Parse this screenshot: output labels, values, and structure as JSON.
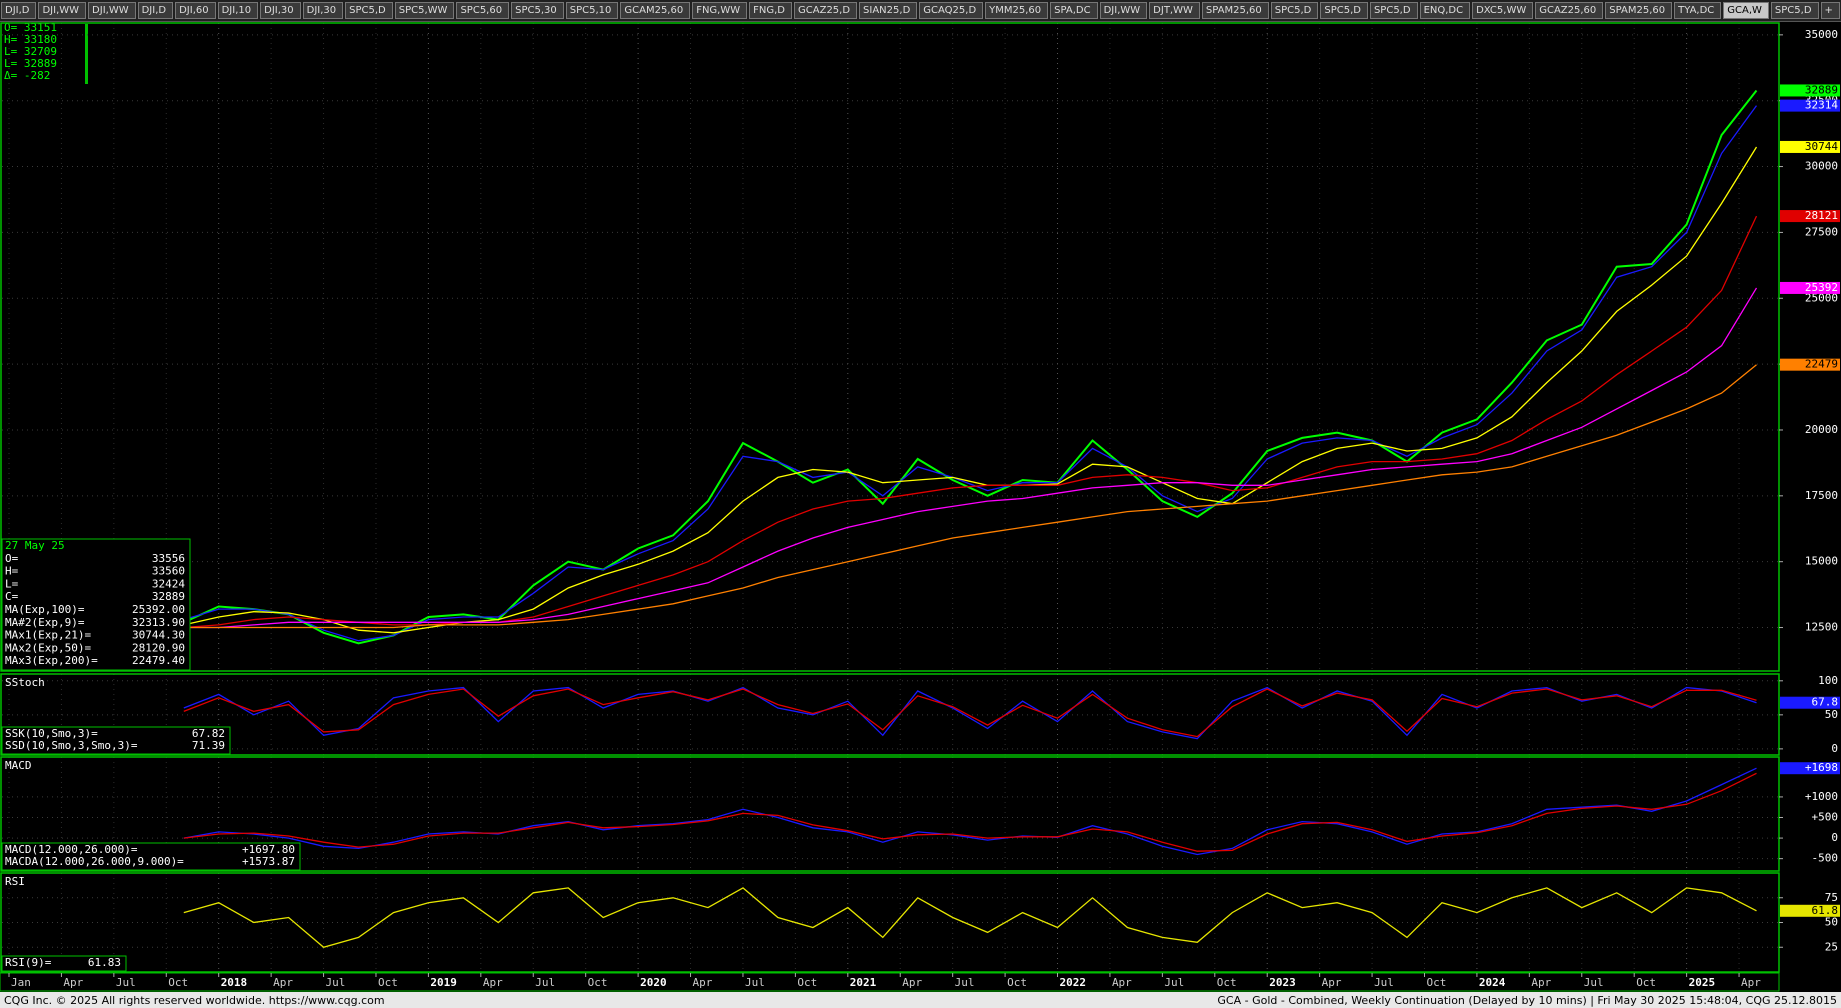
{
  "tabs": [
    {
      "label": "DJI,D"
    },
    {
      "label": "DJI,WW"
    },
    {
      "label": "DJI,WW"
    },
    {
      "label": "DJI,D"
    },
    {
      "label": "DJI,60"
    },
    {
      "label": "DJI,10"
    },
    {
      "label": "DJI,30"
    },
    {
      "label": "DJI,30"
    },
    {
      "label": "SPC5,D"
    },
    {
      "label": "SPC5,WW"
    },
    {
      "label": "SPC5,60"
    },
    {
      "label": "SPC5,30"
    },
    {
      "label": "SPC5,10"
    },
    {
      "label": "GCAM25,60"
    },
    {
      "label": "FNG,WW"
    },
    {
      "label": "FNG,D"
    },
    {
      "label": "GCAZ25,D"
    },
    {
      "label": "SIAN25,D"
    },
    {
      "label": "GCAQ25,D"
    },
    {
      "label": "YMM25,60"
    },
    {
      "label": "SPA,DC"
    },
    {
      "label": "DJI,WW"
    },
    {
      "label": "DJT,WW"
    },
    {
      "label": "SPAM25,60"
    },
    {
      "label": "SPC5,D"
    },
    {
      "label": "SPC5,D"
    },
    {
      "label": "SPC5,D"
    },
    {
      "label": "ENQ,DC"
    },
    {
      "label": "DXC5,WW"
    },
    {
      "label": "GCAZ25,60"
    },
    {
      "label": "SPAM25,60"
    },
    {
      "label": "TYA,DC"
    },
    {
      "label": "GCA,W",
      "active": true
    },
    {
      "label": "SPC5,D"
    },
    {
      "label": "+"
    }
  ],
  "price_readout": [
    "O=   33151",
    "H=   33180",
    "L=   32709",
    "L=   32889",
    "Δ=    -282"
  ],
  "footer": {
    "left": "CQG Inc. © 2025 All rights reserved worldwide. https://www.cqg.com",
    "right": "GCA - Gold - Combined, Weekly Continuation (Delayed by 10 mins) | Fri May 30 2025 15:48:04, CQG 25.12.8015"
  },
  "chart_data": {
    "type": "line",
    "x": [
      "2017-11",
      "2018-01",
      "2018-03",
      "2018-05",
      "2018-07",
      "2018-09",
      "2018-11",
      "2019-01",
      "2019-03",
      "2019-05",
      "2019-07",
      "2019-09",
      "2019-11",
      "2020-01",
      "2020-03",
      "2020-05",
      "2020-07",
      "2020-09",
      "2020-11",
      "2021-01",
      "2021-03",
      "2021-05",
      "2021-07",
      "2021-09",
      "2021-11",
      "2022-01",
      "2022-03",
      "2022-05",
      "2022-07",
      "2022-09",
      "2022-11",
      "2023-01",
      "2023-03",
      "2023-05",
      "2023-07",
      "2023-09",
      "2023-11",
      "2024-01",
      "2024-03",
      "2024-05",
      "2024-07",
      "2024-09",
      "2024-11",
      "2025-01",
      "2025-03",
      "2025-05"
    ],
    "xlim": [
      "2017-01",
      "2025-06"
    ],
    "xticks": [
      {
        "value": "2017-01",
        "label": "Jan"
      },
      {
        "value": "2017-04",
        "label": "Apr"
      },
      {
        "value": "2017-07",
        "label": "Jul"
      },
      {
        "value": "2017-10",
        "label": "Oct"
      },
      {
        "value": "2018-01",
        "label": "2018"
      },
      {
        "value": "2018-04",
        "label": "Apr"
      },
      {
        "value": "2018-07",
        "label": "Jul"
      },
      {
        "value": "2018-10",
        "label": "Oct"
      },
      {
        "value": "2019-01",
        "label": "2019"
      },
      {
        "value": "2019-04",
        "label": "Apr"
      },
      {
        "value": "2019-07",
        "label": "Jul"
      },
      {
        "value": "2019-10",
        "label": "Oct"
      },
      {
        "value": "2020-01",
        "label": "2020"
      },
      {
        "value": "2020-04",
        "label": "Apr"
      },
      {
        "value": "2020-07",
        "label": "Jul"
      },
      {
        "value": "2020-10",
        "label": "Oct"
      },
      {
        "value": "2021-01",
        "label": "2021"
      },
      {
        "value": "2021-04",
        "label": "Apr"
      },
      {
        "value": "2021-07",
        "label": "Jul"
      },
      {
        "value": "2021-10",
        "label": "Oct"
      },
      {
        "value": "2022-01",
        "label": "2022"
      },
      {
        "value": "2022-04",
        "label": "Apr"
      },
      {
        "value": "2022-07",
        "label": "Jul"
      },
      {
        "value": "2022-10",
        "label": "Oct"
      },
      {
        "value": "2023-01",
        "label": "2023"
      },
      {
        "value": "2023-04",
        "label": "Apr"
      },
      {
        "value": "2023-07",
        "label": "Jul"
      },
      {
        "value": "2023-10",
        "label": "Oct"
      },
      {
        "value": "2024-01",
        "label": "2024"
      },
      {
        "value": "2024-04",
        "label": "Apr"
      },
      {
        "value": "2024-07",
        "label": "Jul"
      },
      {
        "value": "2024-10",
        "label": "Oct"
      },
      {
        "value": "2025-01",
        "label": "2025"
      },
      {
        "value": "2025-04",
        "label": "Apr"
      }
    ],
    "panels": [
      {
        "date": "27 May 25",
        "readout": [
          [
            "O=",
            "33556"
          ],
          [
            "H=",
            "33560"
          ],
          [
            "L=",
            "32424"
          ],
          [
            "C=",
            "32889"
          ],
          [
            "MA(Exp,100)=",
            "25392.00"
          ],
          [
            "MA#2(Exp,9)=",
            "32313.90"
          ],
          [
            "MAx1(Exp,21)=",
            "30744.30"
          ],
          [
            "MAx2(Exp,50)=",
            "28120.90"
          ],
          [
            "MAx3(Exp,200)=",
            "22479.40"
          ]
        ],
        "ylim": [
          10850,
          35450
        ],
        "yticks": [
          12500,
          15000,
          17500,
          20000,
          22500,
          25000,
          27500,
          30000,
          32500,
          35000
        ],
        "series": [
          {
            "color": "#00ff00",
            "flag": "32889",
            "values": [
              12700,
              13300,
              13200,
              13000,
              12300,
              11900,
              12200,
              12900,
              13000,
              12800,
              14100,
              15000,
              14700,
              15500,
              16000,
              17300,
              19500,
              18800,
              18000,
              18500,
              17200,
              18900,
              18100,
              17500,
              18100,
              18000,
              19600,
              18500,
              17300,
              16700,
              17600,
              19200,
              19700,
              19900,
              19600,
              18800,
              19900,
              20400,
              21800,
              23400,
              24000,
              26200,
              26300,
              27800,
              31200,
              32889
            ]
          },
          {
            "color": "#1a1aff",
            "flag": "32314",
            "values": [
              12800,
              13200,
              13200,
              13000,
              12400,
              12000,
              12200,
              12800,
              12900,
              12900,
              13800,
              14800,
              14700,
              15300,
              15800,
              17000,
              19000,
              18800,
              18200,
              18400,
              17500,
              18600,
              18200,
              17700,
              18000,
              18000,
              19300,
              18600,
              17500,
              16900,
              17400,
              18900,
              19500,
              19700,
              19600,
              19000,
              19700,
              20200,
              21400,
              23000,
              23800,
              25800,
              26200,
              27500,
              30500,
              32313.9
            ]
          },
          {
            "color": "#ffff00",
            "flag": "30744",
            "values": [
              12600,
              12900,
              13100,
              13050,
              12800,
              12400,
              12300,
              12500,
              12700,
              12800,
              13200,
              14000,
              14500,
              14900,
              15400,
              16100,
              17300,
              18200,
              18500,
              18400,
              18000,
              18100,
              18200,
              17900,
              17900,
              17950,
              18700,
              18600,
              18000,
              17400,
              17200,
              18000,
              18800,
              19300,
              19500,
              19200,
              19300,
              19700,
              20500,
              21800,
              23000,
              24500,
              25500,
              26600,
              28600,
              30744.3
            ]
          },
          {
            "color": "#e00000",
            "flag": "28121",
            "values": [
              12500,
              12600,
              12800,
              12900,
              12800,
              12700,
              12600,
              12600,
              12700,
              12700,
              12900,
              13300,
              13700,
              14100,
              14500,
              15000,
              15800,
              16500,
              17000,
              17300,
              17400,
              17600,
              17800,
              17900,
              17900,
              17900,
              18200,
              18300,
              18200,
              18000,
              17700,
              17800,
              18200,
              18600,
              18800,
              18800,
              18900,
              19100,
              19600,
              20400,
              21100,
              22100,
              23000,
              23900,
              25300,
              28120.9
            ]
          },
          {
            "color": "#ff00ff",
            "flag": "25392",
            "values": [
              12500,
              12500,
              12600,
              12700,
              12700,
              12700,
              12700,
              12700,
              12700,
              12700,
              12800,
              13000,
              13300,
              13600,
              13900,
              14200,
              14800,
              15400,
              15900,
              16300,
              16600,
              16900,
              17100,
              17300,
              17400,
              17600,
              17800,
              17900,
              18000,
              18000,
              17900,
              17900,
              18100,
              18300,
              18500,
              18600,
              18700,
              18800,
              19100,
              19600,
              20100,
              20800,
              21500,
              22200,
              23200,
              25392
            ]
          },
          {
            "color": "#ff8000",
            "flag": "22479",
            "values": [
              12500,
              12500,
              12500,
              12500,
              12500,
              12500,
              12500,
              12600,
              12600,
              12600,
              12700,
              12800,
              13000,
              13200,
              13400,
              13700,
              14000,
              14400,
              14700,
              15000,
              15300,
              15600,
              15900,
              16100,
              16300,
              16500,
              16700,
              16900,
              17000,
              17100,
              17200,
              17300,
              17500,
              17700,
              17900,
              18100,
              18300,
              18400,
              18600,
              19000,
              19400,
              19800,
              20300,
              20800,
              21400,
              22479.4
            ]
          }
        ]
      },
      {
        "title": "SStoch",
        "readout": [
          [
            "SSK(10,Smo,3)=",
            "67.82"
          ],
          [
            "SSD(10,Smo,3,Smo,3)=",
            "71.39"
          ]
        ],
        "ylim": [
          -9,
          110
        ],
        "yticks": [
          0,
          50,
          100
        ],
        "series": [
          {
            "color": "#1a1aff",
            "flag": "67.8",
            "values": [
              60,
              80,
              50,
              70,
              20,
              30,
              75,
              85,
              90,
              40,
              85,
              90,
              60,
              80,
              85,
              70,
              90,
              60,
              50,
              70,
              20,
              85,
              60,
              30,
              70,
              40,
              85,
              40,
              25,
              15,
              70,
              90,
              60,
              85,
              70,
              20,
              80,
              60,
              85,
              90,
              70,
              80,
              60,
              90,
              85,
              67.82
            ]
          },
          {
            "color": "#e00000",
            "values": [
              55,
              75,
              55,
              65,
              25,
              28,
              65,
              80,
              88,
              48,
              78,
              88,
              65,
              75,
              84,
              72,
              88,
              65,
              52,
              66,
              28,
              78,
              62,
              35,
              64,
              45,
              80,
              45,
              28,
              18,
              62,
              88,
              63,
              82,
              72,
              26,
              74,
              62,
              82,
              88,
              72,
              78,
              62,
              86,
              86,
              71.39
            ]
          }
        ]
      },
      {
        "title": "MACD",
        "readout": [
          [
            "MACD(12.000,26.000)=",
            "+1697.80"
          ],
          [
            "MACDA(12.000,26.000,9.000)=",
            "+1573.87"
          ]
        ],
        "ylim": [
          -800,
          1970
        ],
        "yticks": [
          -500,
          0,
          {
            "value": 500,
            "label": "+500"
          },
          {
            "value": 1000,
            "label": "+1000"
          }
        ],
        "series": [
          {
            "color": "#1a1aff",
            "flag": "+1698",
            "values": [
              0,
              150,
              100,
              0,
              -200,
              -250,
              -100,
              100,
              150,
              100,
              300,
              400,
              200,
              300,
              350,
              450,
              700,
              500,
              250,
              150,
              -100,
              150,
              80,
              -50,
              50,
              20,
              300,
              100,
              -200,
              -400,
              -250,
              200,
              400,
              350,
              150,
              -150,
              100,
              150,
              350,
              700,
              750,
              800,
              650,
              900,
              1300,
              1697.8
            ]
          },
          {
            "color": "#e00000",
            "values": [
              0,
              100,
              120,
              50,
              -100,
              -220,
              -150,
              50,
              120,
              120,
              250,
              380,
              250,
              280,
              330,
              420,
              600,
              550,
              320,
              180,
              -20,
              80,
              100,
              0,
              30,
              30,
              220,
              150,
              -100,
              -320,
              -300,
              100,
              350,
              380,
              200,
              -80,
              50,
              130,
              300,
              600,
              720,
              780,
              700,
              820,
              1150,
              1573.87
            ]
          }
        ]
      },
      {
        "title": "RSI",
        "readout": [
          [
            "RSI(9)=",
            "61.83"
          ]
        ],
        "ylim": [
          0,
          100
        ],
        "yticks": [
          25,
          50,
          75
        ],
        "series": [
          {
            "color": "#e6e600",
            "flag": "61.8",
            "values": [
              60,
              70,
              50,
              55,
              25,
              35,
              60,
              70,
              75,
              50,
              80,
              85,
              55,
              70,
              75,
              65,
              85,
              55,
              45,
              65,
              35,
              75,
              55,
              40,
              60,
              45,
              75,
              45,
              35,
              30,
              60,
              80,
              65,
              70,
              60,
              35,
              70,
              60,
              75,
              85,
              65,
              80,
              60,
              85,
              80,
              61.83
            ]
          }
        ]
      }
    ]
  }
}
